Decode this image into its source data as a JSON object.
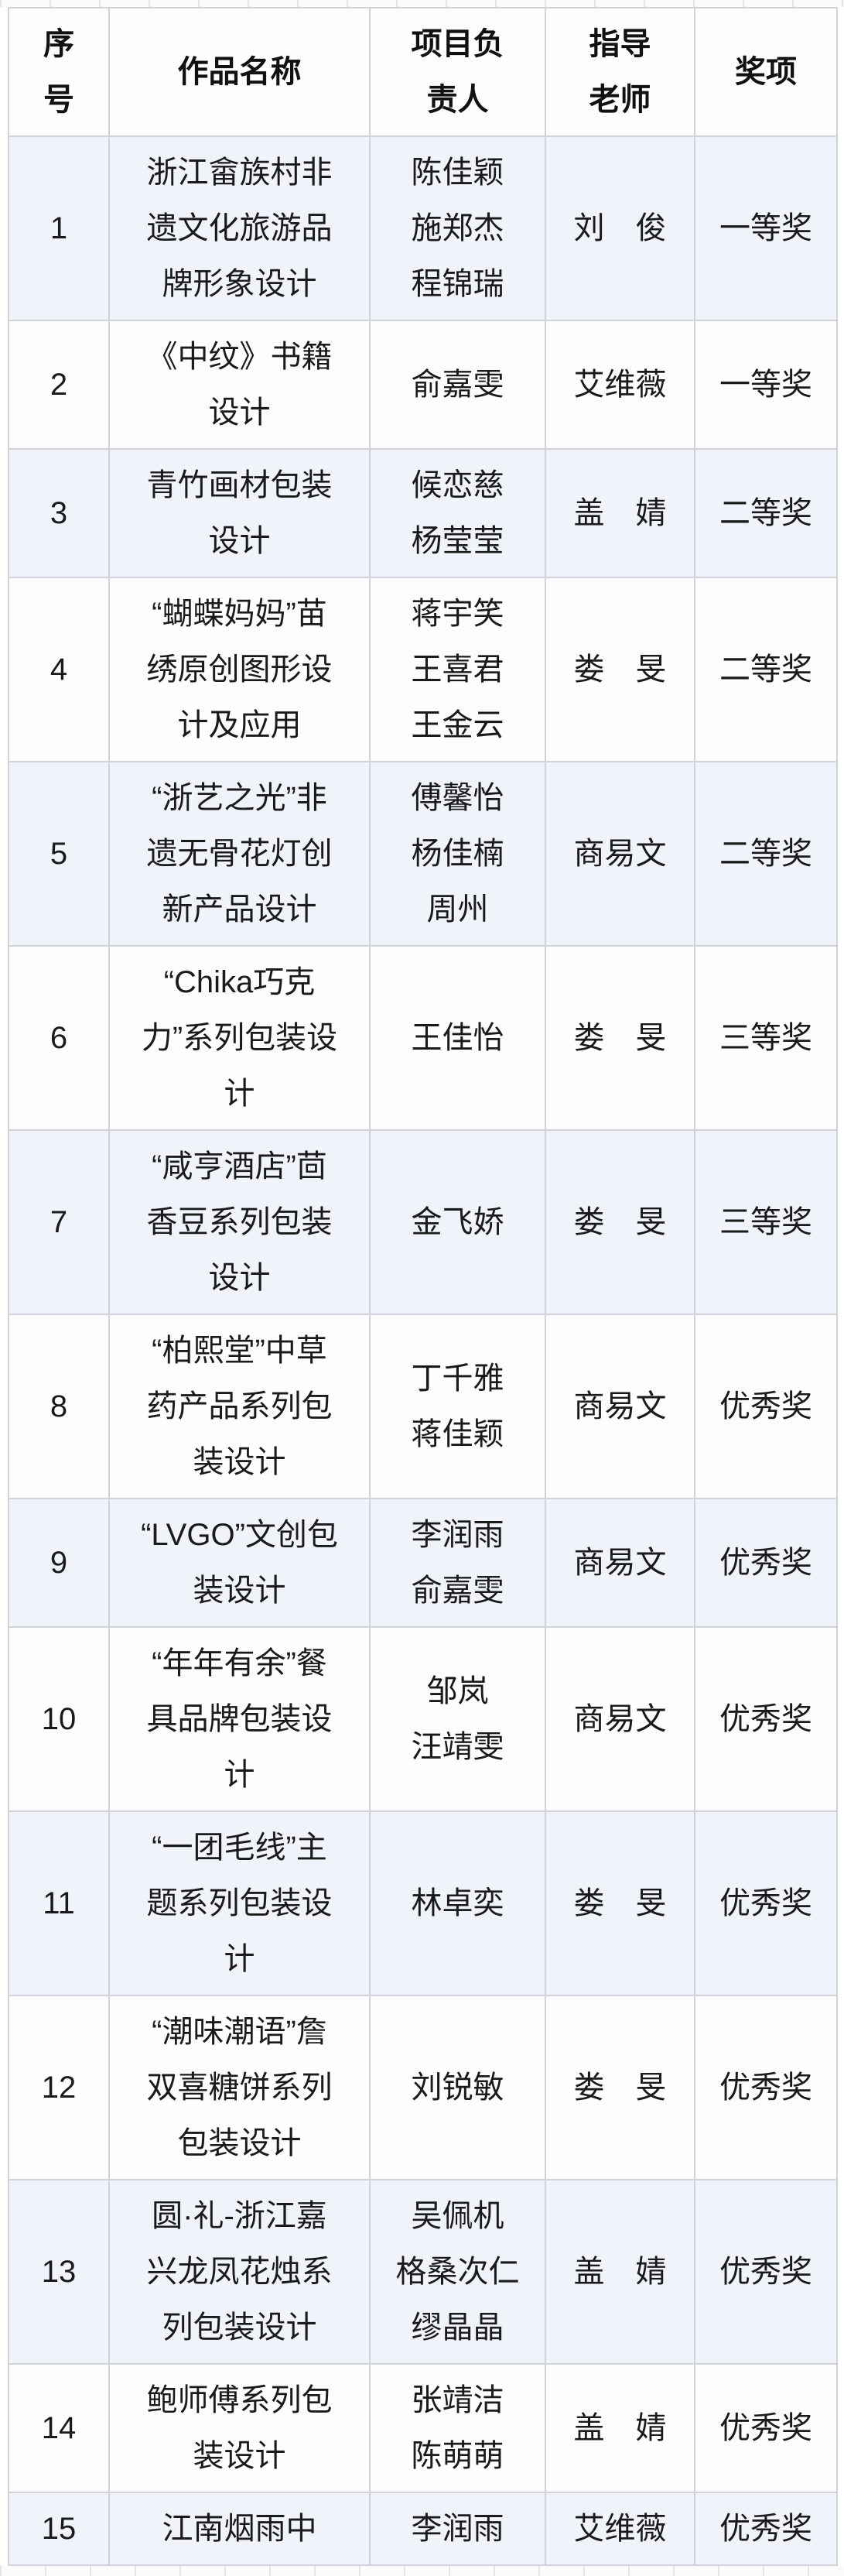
{
  "table": {
    "columns": [
      {
        "key": "serial",
        "label": "序\n号"
      },
      {
        "key": "work",
        "label": "作品名称"
      },
      {
        "key": "leader",
        "label": "项目负\n责人"
      },
      {
        "key": "teacher",
        "label": "指导\n老师"
      },
      {
        "key": "award",
        "label": "奖项"
      }
    ],
    "rows": [
      {
        "serial": "1",
        "work": "浙江畲族村非遗文化旅游品牌形象设计",
        "leaders": [
          "陈佳颖",
          "施郑杰",
          "程锦瑞"
        ],
        "teacher": "刘　俊",
        "award": "一等奖"
      },
      {
        "serial": "2",
        "work": "《中纹》书籍设计",
        "leaders": [
          "俞嘉雯"
        ],
        "teacher": "艾维薇",
        "award": "一等奖"
      },
      {
        "serial": "3",
        "work": "青竹画材包装设计",
        "leaders": [
          "候恋慈",
          "杨莹莹"
        ],
        "teacher": "盖　婧",
        "award": "二等奖"
      },
      {
        "serial": "4",
        "work": "“蝴蝶妈妈”苗绣原创图形设计及应用",
        "leaders": [
          "蒋宇笑",
          "王喜君",
          "王金云"
        ],
        "teacher": "娄　旻",
        "award": "二等奖"
      },
      {
        "serial": "5",
        "work": "“浙艺之光”非遗无骨花灯创新产品设计",
        "leaders": [
          "傅馨怡",
          "杨佳楠",
          "周州"
        ],
        "teacher": "商易文",
        "award": "二等奖"
      },
      {
        "serial": "6",
        "work": "“Chika巧克力”系列包装设计",
        "leaders": [
          "王佳怡"
        ],
        "teacher": "娄　旻",
        "award": "三等奖"
      },
      {
        "serial": "7",
        "work": "“咸亨酒店”茴香豆系列包装设计",
        "leaders": [
          "金飞娇"
        ],
        "teacher": "娄　旻",
        "award": "三等奖"
      },
      {
        "serial": "8",
        "work": "“柏熙堂”中草药产品系列包装设计",
        "leaders": [
          "丁千雅",
          "蒋佳颖"
        ],
        "teacher": "商易文",
        "award": "优秀奖"
      },
      {
        "serial": "9",
        "work": "“LVGO”文创包装设计",
        "leaders": [
          "李润雨",
          "俞嘉雯"
        ],
        "teacher": "商易文",
        "award": "优秀奖"
      },
      {
        "serial": "10",
        "work": "“年年有余”餐具品牌包装设计",
        "leaders": [
          "邹岚",
          "汪靖雯"
        ],
        "teacher": "商易文",
        "award": "优秀奖"
      },
      {
        "serial": "11",
        "work": "“一团毛线”主题系列包装设计",
        "leaders": [
          "林卓奕"
        ],
        "teacher": "娄　旻",
        "award": "优秀奖"
      },
      {
        "serial": "12",
        "work": "“潮味潮语”詹双喜糖饼系列包装设计",
        "leaders": [
          "刘锐敏"
        ],
        "teacher": "娄　旻",
        "award": "优秀奖"
      },
      {
        "serial": "13",
        "work": "圆·礼-浙江嘉兴龙凤花烛系列包装设计",
        "leaders": [
          "吴佩机",
          "格桑次仁",
          "缪晶晶"
        ],
        "teacher": "盖　婧",
        "award": "优秀奖"
      },
      {
        "serial": "14",
        "work": "鲍师傅系列包装设计",
        "leaders": [
          "张靖洁",
          "陈萌萌"
        ],
        "teacher": "盖　婧",
        "award": "优秀奖"
      },
      {
        "serial": "15",
        "work": "江南烟雨中",
        "leaders": [
          "李润雨"
        ],
        "teacher": "艾维薇",
        "award": "优秀奖"
      }
    ],
    "colors": {
      "row_alt_background": "#f0f4fa",
      "row_base_background": "#fdfdfe",
      "grid_line": "#d2d3d8",
      "text": "#1a1a1c"
    }
  }
}
